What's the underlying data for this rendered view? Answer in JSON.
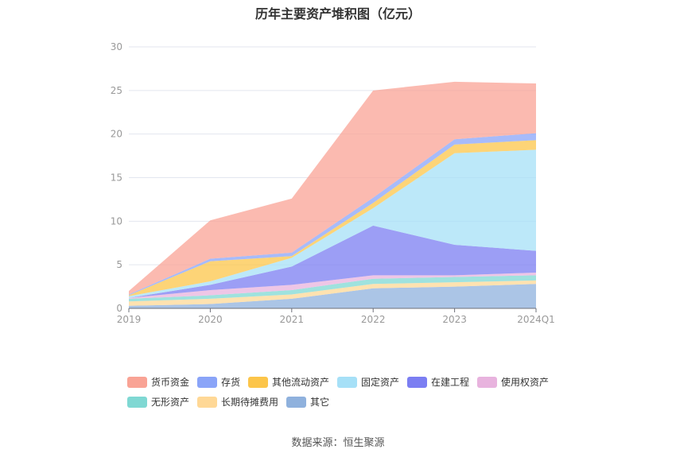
{
  "chart_data": {
    "type": "area",
    "title": "历年主要资产堆积图（亿元）",
    "categories": [
      "2019",
      "2020",
      "2021",
      "2022",
      "2023",
      "2024Q1"
    ],
    "ylim": [
      0,
      30
    ],
    "yticks": [
      "0",
      "5",
      "10",
      "15",
      "20",
      "25",
      "30"
    ],
    "grid": true,
    "legend_position": "bottom",
    "series": [
      {
        "name": "其它",
        "color": "#8fb1dd",
        "values": [
          0.3,
          0.5,
          1.1,
          2.3,
          2.5,
          2.8
        ]
      },
      {
        "name": "长期待摊费用",
        "color": "#ffd896",
        "values": [
          0.5,
          0.6,
          0.5,
          0.5,
          0.5,
          0.4
        ]
      },
      {
        "name": "无形资产",
        "color": "#7fd8d3",
        "values": [
          0.3,
          0.4,
          0.5,
          0.6,
          0.6,
          0.6
        ]
      },
      {
        "name": "使用权资产",
        "color": "#e8b3de",
        "values": [
          0.1,
          0.6,
          0.6,
          0.4,
          0.2,
          0.3
        ]
      },
      {
        "name": "在建工程",
        "color": "#7b7ef2",
        "values": [
          0.0,
          0.6,
          2.1,
          5.7,
          3.5,
          2.5
        ]
      },
      {
        "name": "固定资产",
        "color": "#a6e0f7",
        "values": [
          0.2,
          0.4,
          1.0,
          2.0,
          10.5,
          11.6
        ]
      },
      {
        "name": "其他流动资产",
        "color": "#fcc54a",
        "values": [
          0.1,
          2.3,
          0.2,
          0.6,
          1.0,
          1.1
        ]
      },
      {
        "name": "存货",
        "color": "#8aa4f8",
        "values": [
          0.1,
          0.3,
          0.4,
          0.6,
          0.6,
          0.8
        ]
      },
      {
        "name": "货币资金",
        "color": "#f9a395",
        "values": [
          0.4,
          4.4,
          6.2,
          12.3,
          6.6,
          5.7
        ]
      }
    ]
  },
  "legend": [
    {
      "label": "货币资金",
      "color": "#f9a395"
    },
    {
      "label": "存货",
      "color": "#8aa4f8"
    },
    {
      "label": "其他流动资产",
      "color": "#fcc54a"
    },
    {
      "label": "固定资产",
      "color": "#a6e0f7"
    },
    {
      "label": "在建工程",
      "color": "#7b7ef2"
    },
    {
      "label": "使用权资产",
      "color": "#e8b3de"
    },
    {
      "label": "无形资产",
      "color": "#7fd8d3"
    },
    {
      "label": "长期待摊费用",
      "color": "#ffd896"
    },
    {
      "label": "其它",
      "color": "#8fb1dd"
    }
  ],
  "source": "数据来源：恒生聚源"
}
